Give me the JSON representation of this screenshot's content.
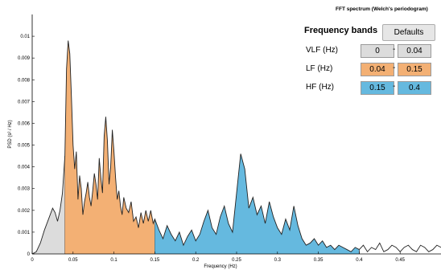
{
  "chart_data": {
    "type": "area",
    "title": "FFT spectrum (Welch's periodogram)",
    "xlabel": "Frequency (Hz)",
    "ylabel": "PSD (s² / Hz)",
    "xlim": [
      0,
      0.5
    ],
    "ylim": [
      0,
      0.011
    ],
    "xticks": [
      0,
      0.05,
      0.1,
      0.15,
      0.2,
      0.25,
      0.3,
      0.35,
      0.4,
      0.45
    ],
    "xtick_labels": [
      "0",
      "0.05",
      "0.1",
      "0.15",
      "0.2",
      "0.25",
      "0.3",
      "0.35",
      "0.4",
      "0.45"
    ],
    "yticks": [
      0,
      0.001,
      0.002,
      0.003,
      0.004,
      0.005,
      0.006,
      0.007,
      0.008,
      0.009,
      0.01
    ],
    "ytick_labels": [
      "0",
      "0.001",
      "0.002",
      "0.003",
      "0.004",
      "0.005",
      "0.006",
      "0.007",
      "0.008",
      "0.009",
      "0.01"
    ],
    "grid": false,
    "series": [
      {
        "x": [
          0,
          0.005,
          0.01,
          0.015,
          0.02,
          0.025,
          0.028,
          0.031,
          0.034,
          0.037,
          0.04,
          0.042,
          0.044,
          0.046,
          0.048,
          0.05,
          0.052,
          0.054,
          0.056,
          0.058,
          0.06,
          0.062,
          0.064,
          0.066,
          0.068,
          0.07,
          0.072,
          0.074,
          0.076,
          0.078,
          0.08,
          0.082,
          0.084,
          0.086,
          0.088,
          0.09,
          0.092,
          0.094,
          0.096,
          0.098,
          0.1,
          0.102,
          0.104,
          0.106,
          0.108,
          0.11,
          0.112,
          0.115,
          0.118,
          0.121,
          0.124,
          0.127,
          0.13,
          0.133,
          0.136,
          0.139,
          0.142,
          0.145,
          0.148,
          0.15,
          0.155,
          0.16,
          0.165,
          0.17,
          0.175,
          0.18,
          0.185,
          0.19,
          0.195,
          0.2,
          0.205,
          0.21,
          0.215,
          0.22,
          0.225,
          0.23,
          0.235,
          0.24,
          0.245,
          0.25,
          0.255,
          0.26,
          0.265,
          0.27,
          0.275,
          0.28,
          0.285,
          0.29,
          0.295,
          0.3,
          0.305,
          0.31,
          0.315,
          0.32,
          0.325,
          0.33,
          0.335,
          0.34,
          0.345,
          0.35,
          0.355,
          0.36,
          0.365,
          0.37,
          0.375,
          0.38,
          0.385,
          0.39,
          0.395,
          0.4,
          0.405,
          0.41,
          0.415,
          0.42,
          0.425,
          0.43,
          0.435,
          0.44,
          0.445,
          0.45,
          0.455,
          0.46,
          0.465,
          0.47,
          0.475,
          0.48,
          0.485,
          0.49,
          0.495,
          0.5
        ],
        "values": [
          0,
          0.0001,
          0.0005,
          0.0011,
          0.0016,
          0.0021,
          0.0019,
          0.0015,
          0.002,
          0.0028,
          0.0045,
          0.0085,
          0.0098,
          0.0092,
          0.0072,
          0.005,
          0.0039,
          0.0047,
          0.0025,
          0.0036,
          0.003,
          0.0018,
          0.0024,
          0.0028,
          0.0033,
          0.0026,
          0.0022,
          0.0029,
          0.0037,
          0.0032,
          0.0025,
          0.0044,
          0.0035,
          0.0028,
          0.0054,
          0.0063,
          0.0052,
          0.0032,
          0.004,
          0.0057,
          0.0047,
          0.0035,
          0.0025,
          0.0029,
          0.0022,
          0.0018,
          0.0026,
          0.0021,
          0.0019,
          0.0024,
          0.0015,
          0.0017,
          0.0012,
          0.0019,
          0.0014,
          0.002,
          0.0015,
          0.002,
          0.0014,
          0.0016,
          0.0011,
          0.0007,
          0.0013,
          0.0009,
          0.0006,
          0.001,
          0.0004,
          0.0008,
          0.0011,
          0.0006,
          0.0009,
          0.0015,
          0.002,
          0.0012,
          0.0009,
          0.0017,
          0.0022,
          0.0014,
          0.001,
          0.0028,
          0.0046,
          0.0039,
          0.0021,
          0.0026,
          0.0018,
          0.0022,
          0.0014,
          0.0024,
          0.0017,
          0.0012,
          0.0009,
          0.0016,
          0.0011,
          0.0022,
          0.0013,
          0.0007,
          0.0004,
          0.0005,
          0.0007,
          0.0004,
          0.0006,
          0.0003,
          0.0004,
          0.0002,
          0.0004,
          0.0003,
          0.0002,
          0.0001,
          0.0003,
          0.0002,
          0.0004,
          0.0001,
          0.0003,
          0.0002,
          0.0005,
          0.0001,
          0.0002,
          0.0004,
          0.0003,
          0.0001,
          0.0003,
          0.0004,
          0.0002,
          0.0001,
          0.0004,
          0.0003,
          0.0001,
          0.0002,
          0.0004,
          0.0003
        ]
      }
    ],
    "bands": [
      {
        "key": "vlf",
        "label": "VLF (Hz)",
        "low": "0",
        "high": "0.04",
        "low_value": 0,
        "high_value": 0.04,
        "color": "#dcdcdc"
      },
      {
        "key": "lf",
        "label": "LF (Hz)",
        "low": "0.04",
        "high": "0.15",
        "low_value": 0.04,
        "high_value": 0.15,
        "color": "#f3b074"
      },
      {
        "key": "hf",
        "label": "HF (Hz)",
        "low": "0.15",
        "high": "0.4",
        "low_value": 0.15,
        "high_value": 0.4,
        "color": "#65b9df"
      }
    ]
  },
  "panel": {
    "title": "Frequency bands",
    "defaults_label": "Defaults",
    "separator": "-"
  }
}
